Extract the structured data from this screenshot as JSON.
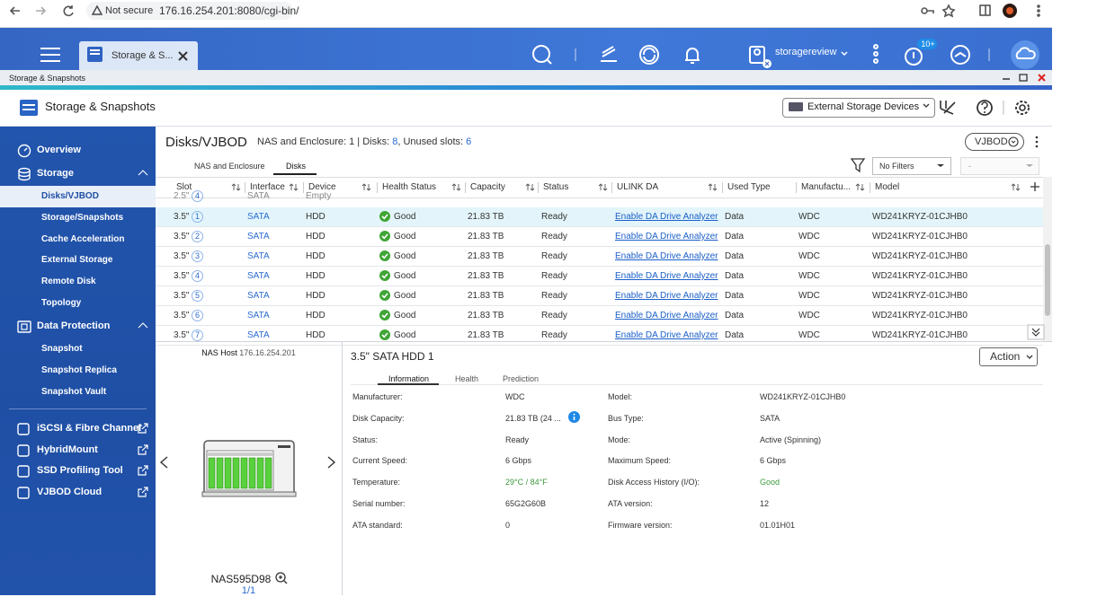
{
  "browser": {
    "warning": "Not secure",
    "url": "176.16.254.201:8080/cgi-bin/"
  },
  "topbar": {
    "tab": "Storage & S...",
    "user": "storagereview",
    "badge": "10+"
  },
  "window_bar": {
    "title": "Storage & Snapshots"
  },
  "app_header": {
    "title": "Storage & Snapshots",
    "external": "External Storage Devices"
  },
  "sidebar": {
    "groups": [
      {
        "title": "Overview",
        "items": []
      },
      {
        "title": "Storage",
        "items": [
          "Disks/VJBOD",
          "Storage/Snapshots",
          "Cache Acceleration",
          "External Storage",
          "Remote Disk",
          "Topology"
        ]
      },
      {
        "title": "Data Protection",
        "items": [
          "Snapshot",
          "Snapshot Replica",
          "Snapshot Vault"
        ]
      }
    ],
    "links": [
      "iSCSI & Fibre Channel",
      "HybridMount",
      "SSD Profiling Tool",
      "VJBOD Cloud"
    ]
  },
  "content": {
    "title": "Disks/VJBOD",
    "summary": {
      "nas": "NAS and Enclosure: 1",
      "disks_label": "| Disks:",
      "disks": 8,
      "unused_label": ", Unused slots:",
      "unused": 6
    },
    "vjbod": "VJBOD",
    "tabs": [
      "NAS and Enclosure",
      "Disks"
    ],
    "filter": "No Filters",
    "filter2": "-"
  },
  "table": {
    "columns": [
      "Slot",
      "Interface",
      "Device",
      "Health Status",
      "Capacity",
      "Status",
      "ULINK DA",
      "Used Type",
      "Manufactu...",
      "Model"
    ],
    "partial_row": {
      "slot": "2.5\"",
      "num": 4,
      "interface": "SATA",
      "device": "Empty"
    },
    "rows": [
      {
        "slot": "3.5\"",
        "num": 1,
        "interface": "SATA",
        "device": "HDD",
        "health": "Good",
        "capacity": "21.83 TB",
        "status": "Ready",
        "ulink": "Enable DA Drive Analyzer",
        "used": "Data",
        "manufacturer": "WDC",
        "model": "WD241KRYZ-01CJHB0"
      },
      {
        "slot": "3.5\"",
        "num": 2,
        "interface": "SATA",
        "device": "HDD",
        "health": "Good",
        "capacity": "21.83 TB",
        "status": "Ready",
        "ulink": "Enable DA Drive Analyzer",
        "used": "Data",
        "manufacturer": "WDC",
        "model": "WD241KRYZ-01CJHB0"
      },
      {
        "slot": "3.5\"",
        "num": 3,
        "interface": "SATA",
        "device": "HDD",
        "health": "Good",
        "capacity": "21.83 TB",
        "status": "Ready",
        "ulink": "Enable DA Drive Analyzer",
        "used": "Data",
        "manufacturer": "WDC",
        "model": "WD241KRYZ-01CJHB0"
      },
      {
        "slot": "3.5\"",
        "num": 4,
        "interface": "SATA",
        "device": "HDD",
        "health": "Good",
        "capacity": "21.83 TB",
        "status": "Ready",
        "ulink": "Enable DA Drive Analyzer",
        "used": "Data",
        "manufacturer": "WDC",
        "model": "WD241KRYZ-01CJHB0"
      },
      {
        "slot": "3.5\"",
        "num": 5,
        "interface": "SATA",
        "device": "HDD",
        "health": "Good",
        "capacity": "21.83 TB",
        "status": "Ready",
        "ulink": "Enable DA Drive Analyzer",
        "used": "Data",
        "manufacturer": "WDC",
        "model": "WD241KRYZ-01CJHB0"
      },
      {
        "slot": "3.5\"",
        "num": 6,
        "interface": "SATA",
        "device": "HDD",
        "health": "Good",
        "capacity": "21.83 TB",
        "status": "Ready",
        "ulink": "Enable DA Drive Analyzer",
        "used": "Data",
        "manufacturer": "WDC",
        "model": "WD241KRYZ-01CJHB0"
      },
      {
        "slot": "3.5\"",
        "num": 7,
        "interface": "SATA",
        "device": "HDD",
        "health": "Good",
        "capacity": "21.83 TB",
        "status": "Ready",
        "ulink": "Enable DA Drive Analyzer",
        "used": "Data",
        "manufacturer": "WDC",
        "model": "WD241KRYZ-01CJHB0"
      }
    ]
  },
  "host": {
    "label": "NAS Host",
    "ip": "176.16.254.201",
    "name": "NAS595D98",
    "page": "1/1"
  },
  "detail": {
    "title": "3.5\" SATA HDD 1",
    "action": "Action",
    "tabs": [
      "Information",
      "Health",
      "Prediction"
    ],
    "left": [
      {
        "label": "Manufacturer:",
        "value": "WDC"
      },
      {
        "label": "Disk Capacity:",
        "value": "21.83 TB (24 ..."
      },
      {
        "label": "Status:",
        "value": "Ready"
      },
      {
        "label": "Current Speed:",
        "value": "6 Gbps"
      },
      {
        "label": "Temperature:",
        "value": "29°C / 84°F"
      },
      {
        "label": "Serial number:",
        "value": "65G2G60B"
      },
      {
        "label": "ATA standard:",
        "value": 0
      }
    ],
    "right": [
      {
        "label": "Model:",
        "value": "WD241KRYZ-01CJHB0"
      },
      {
        "label": "Bus Type:",
        "value": "SATA"
      },
      {
        "label": "Mode:",
        "value": "Active (Spinning)"
      },
      {
        "label": "Maximum Speed:",
        "value": "6 Gbps"
      },
      {
        "label": "Disk Access History (I/O):",
        "value": "Good"
      },
      {
        "label": "ATA version:",
        "value": 12
      },
      {
        "label": "Firmware version:",
        "value": "01.01H01"
      }
    ]
  }
}
